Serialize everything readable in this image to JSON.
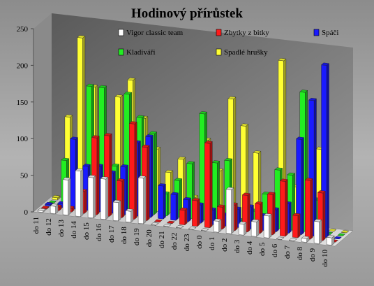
{
  "chart_data": {
    "type": "bar",
    "title": "Hodinový přírůstek",
    "xlabel": "",
    "ylabel": "",
    "ylim": [
      0,
      250
    ],
    "yticks": [
      0,
      50,
      100,
      150,
      200,
      250
    ],
    "grid": false,
    "legend_position": "top",
    "categories": [
      "do 11",
      "do 12",
      "do 13",
      "do 14",
      "do 15",
      "do 16",
      "do 17",
      "do 18",
      "do 19",
      "do 20",
      "do 21",
      "do 22",
      "do 23",
      "do 0",
      "do 1",
      "do 2",
      "do 3",
      "do 4",
      "do 5",
      "do 6",
      "do 7",
      "do 8",
      "do 9",
      "do 10"
    ],
    "series": [
      {
        "name": "Vigor classic team",
        "color": "#ffffff",
        "values": [
          2,
          10,
          48,
          62,
          55,
          55,
          25,
          15,
          62,
          0,
          0,
          0,
          0,
          0,
          15,
          60,
          15,
          20,
          30,
          0,
          0,
          5,
          30,
          10
        ]
      },
      {
        "name": "Zbytky z bitky",
        "color": "#ff1a1a",
        "values": [
          1,
          5,
          5,
          30,
          105,
          110,
          50,
          130,
          100,
          0,
          0,
          20,
          35,
          115,
          30,
          35,
          50,
          40,
          55,
          75,
          30,
          80,
          65,
          0
        ]
      },
      {
        "name": "Spáči",
        "color": "#1a1aff",
        "values": [
          2,
          5,
          95,
          60,
          62,
          55,
          65,
          100,
          110,
          45,
          35,
          30,
          25,
          20,
          15,
          25,
          30,
          20,
          30,
          40,
          130,
          185,
          235,
          0
        ]
      },
      {
        "name": "Kladiváři",
        "color": "#22ee22",
        "values": [
          0,
          60,
          25,
          165,
          165,
          60,
          160,
          130,
          110,
          30,
          50,
          75,
          145,
          80,
          85,
          5,
          20,
          45,
          80,
          75,
          190,
          45,
          0,
          0
        ]
      },
      {
        "name": "Spadlé hrušky",
        "color": "#ffff33",
        "values": [
          3,
          115,
          225,
          160,
          90,
          150,
          175,
          125,
          85,
          55,
          75,
          25,
          105,
          65,
          165,
          130,
          95,
          0,
          225,
          55,
          0,
          110,
          0,
          0
        ]
      }
    ]
  }
}
